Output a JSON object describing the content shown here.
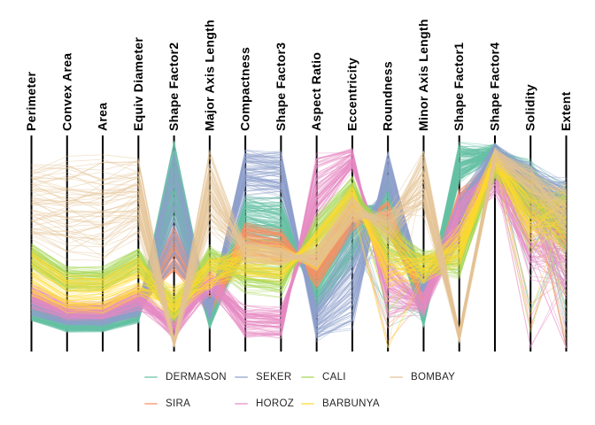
{
  "chart_data": {
    "type": "line",
    "variant": "parallel-coordinates",
    "title": "",
    "categories": [
      "Perimeter",
      "Convex Area",
      "Area",
      "Equiv Diameter",
      "Shape Factor2",
      "Major Axis Length",
      "Compactness",
      "Shape Factor3",
      "Aspect Ratio",
      "Eccentricity",
      "Roundness",
      "Minor Axis Length",
      "Shape Factor1",
      "Shape Factor4",
      "Solidity",
      "Extent"
    ],
    "ylim": [
      0,
      1
    ],
    "grid": false,
    "axis_color": "#000000",
    "label_color": "#000000",
    "legend_position": "bottom",
    "axis_groups": [
      "size",
      "size",
      "size",
      "size",
      "shape",
      "size",
      "shape",
      "shape",
      "anti",
      "anti",
      "shape",
      "size",
      "shape",
      "free",
      "free",
      "free"
    ],
    "series": [
      {
        "name": "DERMASON",
        "color": "#66c2a5",
        "count": 140,
        "band_center": [
          0.17,
          0.11,
          0.11,
          0.16,
          0.8,
          0.14,
          0.6,
          0.58,
          0.28,
          0.55,
          0.72,
          0.15,
          0.88,
          0.93,
          0.78,
          0.62
        ],
        "band_halfwidth": [
          0.03,
          0.025,
          0.025,
          0.03,
          0.17,
          0.04,
          0.11,
          0.11,
          0.09,
          0.14,
          0.08,
          0.04,
          0.08,
          0.04,
          0.1,
          0.14
        ]
      },
      {
        "name": "SIRA",
        "color": "#fc8d62",
        "count": 100,
        "band_center": [
          0.23,
          0.16,
          0.16,
          0.22,
          0.48,
          0.21,
          0.52,
          0.49,
          0.37,
          0.64,
          0.62,
          0.25,
          0.68,
          0.87,
          0.72,
          0.58
        ],
        "band_halfwidth": [
          0.04,
          0.03,
          0.03,
          0.04,
          0.09,
          0.04,
          0.07,
          0.07,
          0.07,
          0.07,
          0.07,
          0.04,
          0.07,
          0.05,
          0.09,
          0.12
        ]
      },
      {
        "name": "SEKER",
        "color": "#8da0cb",
        "count": 85,
        "band_center": [
          0.2,
          0.14,
          0.14,
          0.19,
          0.64,
          0.18,
          0.84,
          0.83,
          0.13,
          0.32,
          0.84,
          0.28,
          0.63,
          0.94,
          0.8,
          0.7
        ],
        "band_halfwidth": [
          0.04,
          0.03,
          0.03,
          0.04,
          0.28,
          0.04,
          0.1,
          0.1,
          0.08,
          0.22,
          0.09,
          0.04,
          0.09,
          0.03,
          0.08,
          0.1
        ]
      },
      {
        "name": "HOROZ",
        "color": "#e78ac3",
        "count": 75,
        "band_center": [
          0.25,
          0.18,
          0.18,
          0.24,
          0.1,
          0.32,
          0.13,
          0.12,
          0.76,
          0.9,
          0.3,
          0.21,
          0.62,
          0.82,
          0.55,
          0.4
        ],
        "band_halfwidth": [
          0.05,
          0.04,
          0.04,
          0.05,
          0.05,
          0.06,
          0.07,
          0.07,
          0.15,
          0.05,
          0.13,
          0.05,
          0.11,
          0.08,
          0.15,
          0.14
        ]
      },
      {
        "name": "CALI",
        "color": "#a6d854",
        "count": 65,
        "band_center": [
          0.44,
          0.33,
          0.33,
          0.42,
          0.18,
          0.43,
          0.35,
          0.33,
          0.55,
          0.76,
          0.5,
          0.41,
          0.42,
          0.87,
          0.68,
          0.63
        ],
        "band_halfwidth": [
          0.05,
          0.05,
          0.05,
          0.05,
          0.06,
          0.05,
          0.07,
          0.07,
          0.08,
          0.05,
          0.1,
          0.05,
          0.08,
          0.06,
          0.12,
          0.15
        ]
      },
      {
        "name": "BARBUNYA",
        "color": "#ffd92f",
        "count": 58,
        "band_center": [
          0.36,
          0.26,
          0.26,
          0.34,
          0.22,
          0.36,
          0.43,
          0.41,
          0.47,
          0.7,
          0.45,
          0.38,
          0.49,
          0.89,
          0.62,
          0.63
        ],
        "band_halfwidth": [
          0.1,
          0.08,
          0.08,
          0.09,
          0.07,
          0.07,
          0.08,
          0.08,
          0.09,
          0.07,
          0.13,
          0.06,
          0.08,
          0.05,
          0.14,
          0.14
        ]
      },
      {
        "name": "BOMBAY",
        "color": "#e5c494",
        "count": 60,
        "band_center": [
          0.69,
          0.67,
          0.67,
          0.72,
          0.03,
          0.74,
          0.46,
          0.44,
          0.43,
          0.67,
          0.58,
          0.79,
          0.06,
          0.91,
          0.8,
          0.66
        ],
        "band_halfwidth": [
          0.17,
          0.2,
          0.2,
          0.16,
          0.02,
          0.17,
          0.05,
          0.04,
          0.05,
          0.06,
          0.07,
          0.13,
          0.03,
          0.04,
          0.06,
          0.1
        ]
      }
    ]
  },
  "legend": {
    "rows": [
      [
        "DERMASON",
        "SEKER",
        "CALI",
        "BOMBAY"
      ],
      [
        "SIRA",
        "HOROZ",
        "BARBUNYA"
      ]
    ],
    "text_color": "#262626"
  }
}
